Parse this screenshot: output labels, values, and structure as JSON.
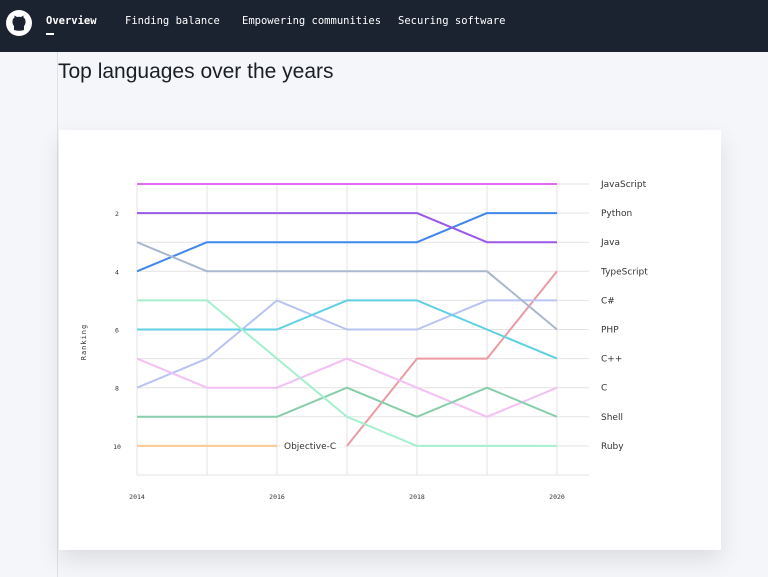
{
  "nav": {
    "items": [
      {
        "label": "Overview",
        "active": true
      },
      {
        "label": "Finding balance",
        "active": false
      },
      {
        "label": "Empowering communities",
        "active": false
      },
      {
        "label": "Securing software",
        "active": false
      }
    ],
    "logo_icon": "github-icon"
  },
  "page": {
    "title": "Top languages over the years"
  },
  "chart_data": {
    "type": "line",
    "title": "",
    "xlabel": "",
    "ylabel": "Ranking",
    "x": [
      2014,
      2015,
      2016,
      2017,
      2018,
      2019,
      2020
    ],
    "xticks": [
      "2014",
      "2016",
      "2018",
      "2020"
    ],
    "yticks": [
      "2",
      "4",
      "6",
      "8",
      "10"
    ],
    "ylim": [
      10,
      1
    ],
    "y_inverted": true,
    "grid": true,
    "legend": "line-end labels on right",
    "series": [
      {
        "name": "JavaScript",
        "color": "#e26cf2",
        "values": [
          1,
          1,
          1,
          1,
          1,
          1,
          1
        ]
      },
      {
        "name": "Python",
        "color": "#3f87ea",
        "values": [
          4,
          3,
          3,
          3,
          3,
          2,
          2
        ]
      },
      {
        "name": "Java",
        "color": "#9a58e6",
        "values": [
          2,
          2,
          2,
          2,
          2,
          3,
          3
        ]
      },
      {
        "name": "TypeScript",
        "color": "#ec9aa4",
        "values": [
          null,
          null,
          null,
          10,
          7,
          7,
          4
        ]
      },
      {
        "name": "C#",
        "color": "#b8c4f2",
        "values": [
          8,
          7,
          5,
          6,
          6,
          5,
          5
        ]
      },
      {
        "name": "PHP",
        "color": "#a9b8cc",
        "values": [
          3,
          4,
          4,
          4,
          4,
          4,
          6
        ]
      },
      {
        "name": "C++",
        "color": "#5fd0e4",
        "values": [
          6,
          6,
          6,
          5,
          5,
          6,
          7
        ]
      },
      {
        "name": "C",
        "color": "#f3c0f3",
        "values": [
          7,
          8,
          8,
          7,
          8,
          9,
          8
        ]
      },
      {
        "name": "Shell",
        "color": "#88ceab",
        "values": [
          9,
          9,
          9,
          8,
          9,
          8,
          9
        ]
      },
      {
        "name": "Ruby",
        "color": "#a4f0ce",
        "values": [
          5,
          5,
          7,
          9,
          10,
          10,
          10
        ]
      },
      {
        "name": "Objective-C",
        "color": "#fbc890",
        "values": [
          10,
          10,
          10,
          null,
          null,
          null,
          null
        ]
      }
    ]
  }
}
